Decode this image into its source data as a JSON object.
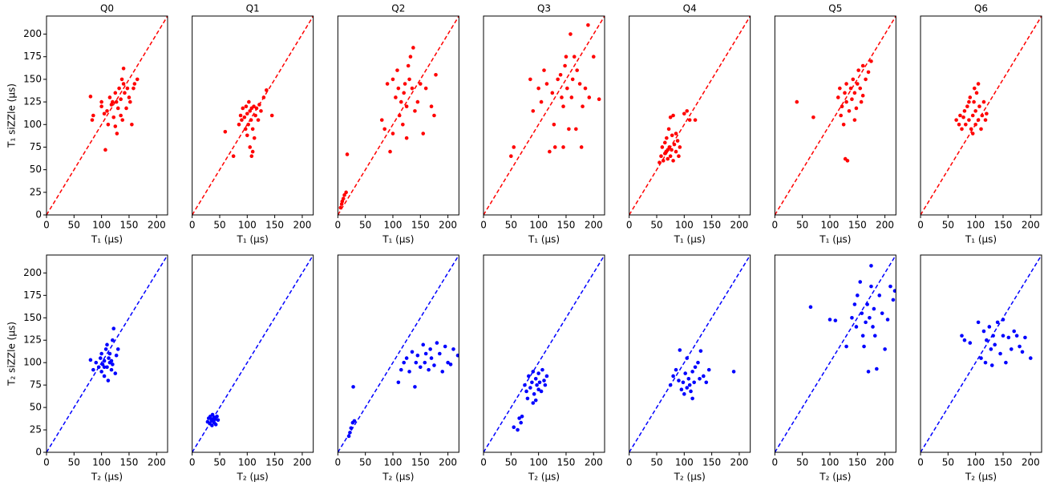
{
  "chart_data": [
    {
      "type": "scatter",
      "title": "Q0",
      "xlabel": "T₁ (μs)",
      "ylabel": "T₁ siZZle (μs)",
      "color": "#ff0000",
      "diagonal": true,
      "xlim": [
        0,
        220
      ],
      "ylim": [
        0,
        220
      ],
      "xticks": [
        0,
        50,
        100,
        150,
        200
      ],
      "yticks": [
        0,
        25,
        50,
        75,
        100,
        125,
        150,
        175,
        200
      ],
      "x": [
        80,
        83,
        85,
        100,
        100,
        105,
        107,
        110,
        112,
        115,
        118,
        120,
        122,
        125,
        127,
        128,
        130,
        132,
        135,
        137,
        138,
        140,
        140,
        142,
        145,
        147,
        150,
        152,
        155,
        158,
        160,
        165,
        135,
        125
      ],
      "values": [
        131,
        105,
        110,
        125,
        120,
        112,
        72,
        115,
        100,
        130,
        122,
        125,
        108,
        135,
        125,
        90,
        118,
        140,
        128,
        150,
        105,
        162,
        145,
        135,
        118,
        140,
        130,
        125,
        100,
        140,
        145,
        150,
        110,
        98
      ]
    },
    {
      "type": "scatter",
      "title": "Q1",
      "xlabel": "T₁ (μs)",
      "color": "#ff0000",
      "diagonal": true,
      "xlim": [
        0,
        220
      ],
      "ylim": [
        0,
        220
      ],
      "xticks": [
        0,
        50,
        100,
        150,
        200
      ],
      "x": [
        60,
        75,
        85,
        88,
        90,
        92,
        95,
        97,
        98,
        100,
        100,
        102,
        103,
        105,
        105,
        107,
        108,
        110,
        110,
        112,
        113,
        115,
        117,
        120,
        122,
        125,
        130,
        135,
        145,
        108
      ],
      "values": [
        92,
        65,
        100,
        110,
        105,
        118,
        108,
        95,
        120,
        112,
        88,
        100,
        125,
        115,
        75,
        105,
        118,
        70,
        95,
        120,
        85,
        110,
        118,
        105,
        122,
        115,
        130,
        138,
        110,
        65
      ]
    },
    {
      "type": "scatter",
      "title": "Q2",
      "xlabel": "T₁ (μs)",
      "color": "#ff0000",
      "diagonal": true,
      "xlim": [
        0,
        220
      ],
      "ylim": [
        0,
        220
      ],
      "xticks": [
        0,
        50,
        100,
        150,
        200
      ],
      "x": [
        5,
        7,
        8,
        10,
        12,
        15,
        17,
        80,
        85,
        90,
        95,
        100,
        100,
        105,
        108,
        110,
        112,
        115,
        118,
        120,
        122,
        125,
        128,
        130,
        132,
        135,
        137,
        140,
        145,
        150,
        155,
        160,
        170,
        175,
        178,
        125
      ],
      "values": [
        8,
        12,
        15,
        18,
        22,
        25,
        67,
        105,
        95,
        145,
        70,
        90,
        150,
        130,
        160,
        140,
        110,
        125,
        100,
        135,
        145,
        120,
        165,
        150,
        175,
        140,
        185,
        115,
        125,
        145,
        90,
        140,
        120,
        110,
        155,
        85
      ]
    },
    {
      "type": "scatter",
      "title": "Q3",
      "xlabel": "T₁ (μs)",
      "color": "#ff0000",
      "diagonal": true,
      "xlim": [
        0,
        220
      ],
      "ylim": [
        0,
        220
      ],
      "xticks": [
        0,
        50,
        100,
        150,
        200
      ],
      "x": [
        50,
        55,
        85,
        90,
        100,
        105,
        110,
        115,
        120,
        125,
        128,
        130,
        135,
        140,
        142,
        145,
        148,
        150,
        152,
        155,
        158,
        160,
        162,
        165,
        168,
        170,
        175,
        180,
        185,
        190,
        192,
        200,
        210,
        178,
        145
      ],
      "values": [
        65,
        75,
        150,
        115,
        140,
        125,
        160,
        145,
        70,
        135,
        100,
        75,
        150,
        155,
        130,
        120,
        165,
        175,
        140,
        95,
        200,
        130,
        150,
        175,
        95,
        160,
        145,
        120,
        140,
        210,
        130,
        175,
        128,
        75,
        75
      ]
    },
    {
      "type": "scatter",
      "title": "Q4",
      "xlabel": "T₁ (μs)",
      "color": "#ff0000",
      "diagonal": true,
      "xlim": [
        0,
        220
      ],
      "ylim": [
        0,
        220
      ],
      "xticks": [
        0,
        50,
        100,
        150,
        200
      ],
      "x": [
        55,
        58,
        60,
        62,
        65,
        67,
        68,
        70,
        72,
        73,
        75,
        75,
        77,
        78,
        80,
        80,
        82,
        85,
        85,
        88,
        90,
        92,
        100,
        105,
        110,
        120,
        70,
        65
      ],
      "values": [
        58,
        65,
        75,
        60,
        80,
        70,
        85,
        62,
        95,
        75,
        108,
        65,
        72,
        88,
        110,
        60,
        78,
        70,
        90,
        82,
        65,
        75,
        112,
        115,
        105,
        105,
        72,
        68
      ]
    },
    {
      "type": "scatter",
      "title": "Q5",
      "xlabel": "T₁ (μs)",
      "color": "#ff0000",
      "diagonal": true,
      "xlim": [
        0,
        220
      ],
      "ylim": [
        0,
        220
      ],
      "xticks": [
        0,
        50,
        100,
        150,
        200
      ],
      "x": [
        40,
        70,
        115,
        118,
        120,
        122,
        125,
        127,
        128,
        130,
        130,
        132,
        135,
        138,
        140,
        142,
        145,
        148,
        150,
        152,
        155,
        157,
        160,
        165,
        170,
        175,
        145,
        160
      ],
      "values": [
        125,
        108,
        130,
        140,
        110,
        120,
        100,
        135,
        62,
        145,
        125,
        60,
        115,
        140,
        128,
        150,
        135,
        118,
        145,
        160,
        140,
        125,
        165,
        150,
        158,
        170,
        105,
        132
      ]
    },
    {
      "type": "scatter",
      "title": "Q6",
      "xlabel": "T₁ (μs)",
      "color": "#ff0000",
      "diagonal": true,
      "xlim": [
        0,
        220
      ],
      "ylim": [
        0,
        220
      ],
      "xticks": [
        0,
        50,
        100,
        150,
        200
      ],
      "x": [
        65,
        70,
        72,
        75,
        78,
        80,
        82,
        85,
        88,
        90,
        92,
        95,
        97,
        98,
        100,
        100,
        102,
        105,
        105,
        107,
        110,
        112,
        115,
        118,
        120,
        95,
        88
      ],
      "values": [
        105,
        100,
        110,
        95,
        108,
        115,
        100,
        120,
        105,
        130,
        95,
        110,
        125,
        140,
        100,
        115,
        135,
        105,
        145,
        120,
        95,
        110,
        125,
        105,
        112,
        90,
        125
      ]
    },
    {
      "type": "scatter",
      "xlabel": "T₂ (μs)",
      "ylabel": "T₂ siZZle (μs)",
      "color": "#0000ff",
      "diagonal": true,
      "xlim": [
        0,
        220
      ],
      "ylim": [
        0,
        220
      ],
      "xticks": [
        0,
        50,
        100,
        150,
        200
      ],
      "yticks": [
        0,
        25,
        50,
        75,
        100,
        125,
        150,
        175,
        200
      ],
      "x": [
        80,
        85,
        90,
        95,
        98,
        100,
        100,
        102,
        105,
        105,
        108,
        110,
        110,
        112,
        113,
        115,
        115,
        118,
        120,
        120,
        122,
        125,
        127,
        130,
        105,
        118
      ],
      "values": [
        103,
        92,
        100,
        95,
        105,
        90,
        110,
        98,
        85,
        102,
        115,
        120,
        95,
        80,
        105,
        100,
        110,
        92,
        125,
        98,
        138,
        88,
        108,
        115,
        95,
        102
      ]
    },
    {
      "type": "scatter",
      "xlabel": "T₂ (μs)",
      "color": "#0000ff",
      "diagonal": true,
      "xlim": [
        0,
        220
      ],
      "ylim": [
        0,
        220
      ],
      "xticks": [
        0,
        50,
        100,
        150,
        200
      ],
      "x": [
        28,
        30,
        32,
        33,
        35,
        36,
        37,
        38,
        40,
        40,
        42,
        43,
        45,
        47,
        35,
        39
      ],
      "values": [
        34,
        38,
        32,
        40,
        35,
        30,
        42,
        36,
        33,
        39,
        37,
        31,
        40,
        36,
        37,
        34
      ]
    },
    {
      "type": "scatter",
      "xlabel": "T₂ (μs)",
      "color": "#0000ff",
      "diagonal": true,
      "xlim": [
        0,
        220
      ],
      "ylim": [
        0,
        220
      ],
      "xticks": [
        0,
        50,
        100,
        150,
        200
      ],
      "x": [
        20,
        22,
        24,
        27,
        30,
        28,
        110,
        115,
        120,
        125,
        130,
        135,
        140,
        142,
        145,
        150,
        155,
        158,
        160,
        165,
        168,
        170,
        175,
        180,
        185,
        190,
        195,
        200,
        205,
        210,
        218
      ],
      "values": [
        18,
        22,
        27,
        33,
        35,
        73,
        78,
        92,
        100,
        105,
        90,
        112,
        73,
        100,
        108,
        95,
        120,
        100,
        110,
        92,
        115,
        105,
        97,
        122,
        110,
        90,
        118,
        100,
        98,
        115,
        108
      ]
    },
    {
      "type": "scatter",
      "xlabel": "T₂ (μs)",
      "color": "#0000ff",
      "diagonal": true,
      "xlim": [
        0,
        220
      ],
      "ylim": [
        0,
        220
      ],
      "xticks": [
        0,
        50,
        100,
        150,
        200
      ],
      "x": [
        55,
        62,
        65,
        68,
        70,
        75,
        78,
        80,
        82,
        85,
        88,
        90,
        92,
        95,
        97,
        100,
        100,
        102,
        105,
        107,
        110,
        112,
        115,
        90,
        95
      ],
      "values": [
        28,
        25,
        38,
        33,
        40,
        75,
        68,
        60,
        85,
        72,
        78,
        90,
        65,
        82,
        75,
        70,
        88,
        78,
        68,
        92,
        80,
        75,
        85,
        55,
        58
      ]
    },
    {
      "type": "scatter",
      "xlabel": "T₂ (μs)",
      "color": "#0000ff",
      "diagonal": true,
      "xlim": [
        0,
        220
      ],
      "ylim": [
        0,
        220
      ],
      "xticks": [
        0,
        50,
        100,
        150,
        200
      ],
      "x": [
        75,
        80,
        85,
        90,
        92,
        95,
        98,
        100,
        102,
        105,
        105,
        108,
        110,
        112,
        115,
        118,
        120,
        125,
        128,
        130,
        135,
        140,
        145,
        190,
        115
      ],
      "values": [
        75,
        85,
        92,
        80,
        114,
        70,
        78,
        65,
        88,
        72,
        105,
        82,
        75,
        68,
        90,
        78,
        95,
        100,
        82,
        113,
        85,
        78,
        92,
        90,
        60
      ]
    },
    {
      "type": "scatter",
      "xlabel": "T₂ (μs)",
      "color": "#0000ff",
      "diagonal": true,
      "xlim": [
        0,
        220
      ],
      "ylim": [
        0,
        220
      ],
      "xticks": [
        0,
        50,
        100,
        150,
        200
      ],
      "x": [
        65,
        100,
        110,
        130,
        140,
        145,
        148,
        150,
        155,
        158,
        160,
        162,
        165,
        168,
        170,
        172,
        175,
        178,
        180,
        182,
        185,
        190,
        195,
        200,
        205,
        210,
        215,
        218,
        175
      ],
      "values": [
        162,
        148,
        147,
        118,
        150,
        165,
        140,
        175,
        190,
        155,
        130,
        118,
        145,
        165,
        90,
        150,
        185,
        140,
        160,
        130,
        93,
        175,
        155,
        115,
        148,
        185,
        170,
        180,
        208
      ]
    },
    {
      "type": "scatter",
      "xlabel": "T₂ (μs)",
      "color": "#0000ff",
      "diagonal": true,
      "xlim": [
        0,
        220
      ],
      "ylim": [
        0,
        220
      ],
      "xticks": [
        0,
        50,
        100,
        150,
        200
      ],
      "x": [
        75,
        80,
        90,
        105,
        110,
        115,
        118,
        120,
        125,
        128,
        130,
        132,
        135,
        140,
        145,
        150,
        155,
        160,
        165,
        170,
        175,
        180,
        185,
        190,
        200,
        150
      ],
      "values": [
        130,
        125,
        122,
        145,
        105,
        135,
        100,
        125,
        140,
        115,
        97,
        130,
        120,
        145,
        110,
        148,
        100,
        128,
        115,
        135,
        130,
        118,
        112,
        128,
        105,
        130
      ]
    }
  ]
}
